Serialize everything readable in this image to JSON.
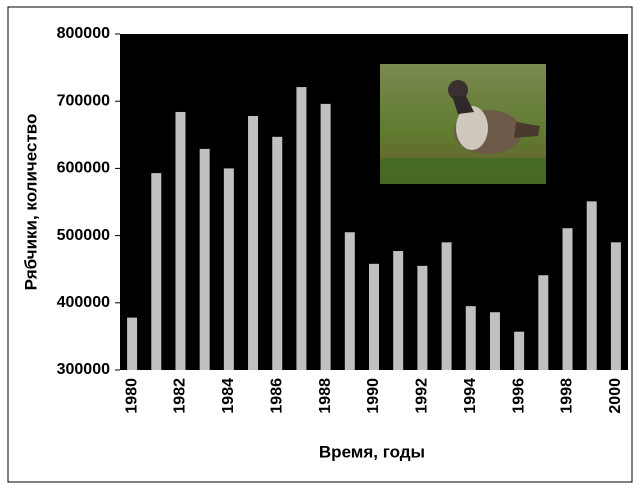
{
  "chart_data": {
    "type": "bar",
    "x_label": "Время, годы",
    "y_label": "Рябчики, количество",
    "categories": [
      "1980",
      null,
      "1982",
      null,
      "1984",
      null,
      "1986",
      null,
      "1988",
      null,
      "1990",
      null,
      "1992",
      null,
      "1994",
      null,
      "1996",
      null,
      "1998",
      null,
      "2000"
    ],
    "values": [
      378000,
      593000,
      684000,
      629000,
      600000,
      678000,
      647000,
      721000,
      696000,
      505000,
      458000,
      477000,
      455000,
      490000,
      395000,
      386000,
      357000,
      441000,
      511000,
      551000,
      490000
    ],
    "color": "#c0c0c0",
    "background": "#000000",
    "ylim": [
      300000,
      800000
    ],
    "yticks": [
      300000,
      400000,
      500000,
      600000,
      700000,
      800000
    ],
    "grid": false
  }
}
